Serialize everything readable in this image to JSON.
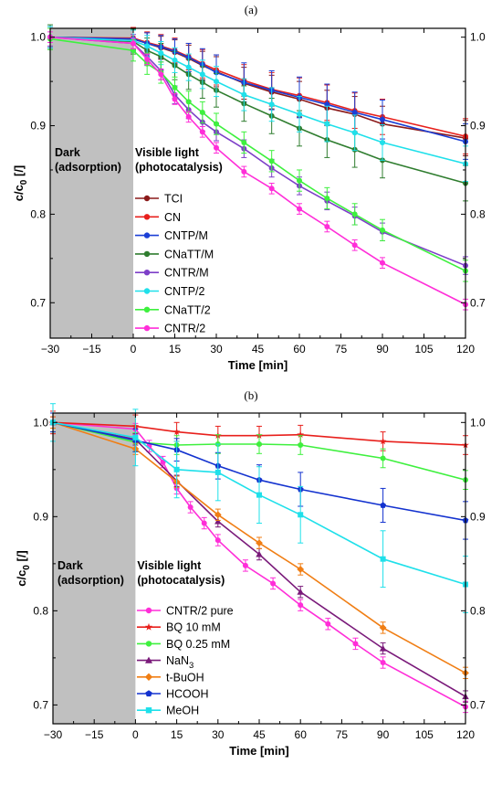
{
  "chart_data": [
    {
      "type": "line",
      "panel_label": "(a)",
      "xlabel": "Time [min]",
      "ylabel_main": "c/c",
      "ylabel_sub": "0",
      "ylabel_unit": " [/]",
      "xlim": [
        -30,
        120
      ],
      "ylim": [
        0.66,
        1.01
      ],
      "xticks": [
        -30,
        -15,
        0,
        15,
        30,
        45,
        60,
        75,
        90,
        105,
        120
      ],
      "yticks": [
        0.7,
        0.8,
        0.9,
        1.0
      ],
      "xtick_labels": [
        "−30",
        "−15",
        "0",
        "15",
        "30",
        "45",
        "60",
        "75",
        "90",
        "105",
        "120"
      ],
      "ytick_labels": [
        "0.7",
        "0.8",
        "0.9",
        "1.0"
      ],
      "dark_region": [
        -30,
        0
      ],
      "dark_label_1": "Dark",
      "dark_label_2": "(adsorption)",
      "light_label_1": "Visible light",
      "light_label_2": "(photocatalysis)",
      "legend_position": "middle-left",
      "series": [
        {
          "name": "TCI",
          "color": "#8b1a1a",
          "marker": "circle",
          "x": [
            -30,
            0,
            5,
            10,
            15,
            20,
            25,
            30,
            40,
            50,
            60,
            70,
            80,
            90,
            120
          ],
          "y": [
            1.0,
            0.998,
            0.993,
            0.988,
            0.983,
            0.976,
            0.968,
            0.961,
            0.948,
            0.938,
            0.93,
            0.92,
            0.913,
            0.902,
            0.886
          ],
          "err": [
            0.012,
            0.012,
            0.012,
            0.013,
            0.014,
            0.015,
            0.016,
            0.017,
            0.018,
            0.019,
            0.02,
            0.02,
            0.02,
            0.02,
            0.02
          ]
        },
        {
          "name": "CN",
          "color": "#e8201c",
          "marker": "circle",
          "x": [
            -30,
            0,
            5,
            10,
            15,
            20,
            25,
            30,
            40,
            50,
            60,
            70,
            80,
            90,
            120
          ],
          "y": [
            1.0,
            0.999,
            0.994,
            0.99,
            0.985,
            0.978,
            0.97,
            0.963,
            0.951,
            0.941,
            0.934,
            0.926,
            0.917,
            0.91,
            0.888
          ],
          "err": [
            0.012,
            0.012,
            0.012,
            0.013,
            0.014,
            0.015,
            0.016,
            0.017,
            0.018,
            0.019,
            0.02,
            0.02,
            0.02,
            0.02,
            0.02
          ]
        },
        {
          "name": "CNTP/M",
          "color": "#1b3fd6",
          "marker": "circle",
          "x": [
            -30,
            0,
            5,
            10,
            15,
            20,
            25,
            30,
            40,
            50,
            60,
            70,
            80,
            90,
            120
          ],
          "y": [
            1.0,
            0.998,
            0.993,
            0.989,
            0.984,
            0.977,
            0.969,
            0.96,
            0.949,
            0.94,
            0.932,
            0.924,
            0.915,
            0.907,
            0.882
          ],
          "err": [
            0.012,
            0.012,
            0.012,
            0.013,
            0.014,
            0.016,
            0.018,
            0.02,
            0.022,
            0.022,
            0.023,
            0.023,
            0.023,
            0.022,
            0.02
          ]
        },
        {
          "name": "CNaTT/M",
          "color": "#2f7d2f",
          "marker": "circle",
          "x": [
            -30,
            0,
            5,
            10,
            15,
            20,
            25,
            30,
            40,
            50,
            60,
            70,
            80,
            90,
            120
          ],
          "y": [
            1.0,
            0.995,
            0.985,
            0.978,
            0.968,
            0.958,
            0.949,
            0.94,
            0.925,
            0.911,
            0.897,
            0.884,
            0.873,
            0.861,
            0.835
          ],
          "err": [
            0.014,
            0.014,
            0.014,
            0.015,
            0.016,
            0.017,
            0.018,
            0.019,
            0.02,
            0.02,
            0.02,
            0.02,
            0.02,
            0.02,
            0.02
          ]
        },
        {
          "name": "CNTR/M",
          "color": "#7d3fc8",
          "marker": "circle",
          "x": [
            -30,
            0,
            5,
            10,
            15,
            20,
            25,
            30,
            40,
            50,
            60,
            70,
            80,
            90,
            120
          ],
          "y": [
            1.0,
            0.993,
            0.978,
            0.962,
            0.935,
            0.918,
            0.904,
            0.893,
            0.874,
            0.852,
            0.832,
            0.815,
            0.798,
            0.78,
            0.742
          ],
          "err": [
            0.01,
            0.01,
            0.01,
            0.01,
            0.01,
            0.01,
            0.01,
            0.01,
            0.01,
            0.01,
            0.01,
            0.01,
            0.01,
            0.01,
            0.01
          ]
        },
        {
          "name": "CNTP/2",
          "color": "#1fe0ea",
          "marker": "circle",
          "x": [
            -30,
            0,
            5,
            10,
            15,
            20,
            25,
            30,
            40,
            50,
            60,
            70,
            80,
            90,
            120
          ],
          "y": [
            1.0,
            0.996,
            0.99,
            0.982,
            0.974,
            0.966,
            0.958,
            0.95,
            0.935,
            0.924,
            0.913,
            0.902,
            0.892,
            0.881,
            0.857
          ],
          "err": [
            0.012,
            0.012,
            0.012,
            0.013,
            0.014,
            0.015,
            0.016,
            0.017,
            0.018,
            0.019,
            0.02,
            0.02,
            0.02,
            0.02,
            0.02
          ]
        },
        {
          "name": "CNaTT/2",
          "color": "#3ef03e",
          "marker": "circle",
          "x": [
            -30,
            0,
            5,
            10,
            15,
            20,
            25,
            30,
            40,
            50,
            60,
            70,
            80,
            90,
            120
          ],
          "y": [
            0.998,
            0.985,
            0.97,
            0.96,
            0.943,
            0.927,
            0.915,
            0.902,
            0.881,
            0.86,
            0.838,
            0.818,
            0.8,
            0.782,
            0.736
          ],
          "err": [
            0.012,
            0.012,
            0.012,
            0.012,
            0.012,
            0.012,
            0.012,
            0.012,
            0.012,
            0.012,
            0.012,
            0.012,
            0.012,
            0.012,
            0.012
          ]
        },
        {
          "name": "CNTR/2",
          "color": "#ff2ed8",
          "marker": "circle",
          "x": [
            -30,
            0,
            5,
            10,
            15,
            20,
            25,
            30,
            40,
            50,
            60,
            70,
            80,
            90,
            120
          ],
          "y": [
            1.0,
            0.993,
            0.975,
            0.958,
            0.93,
            0.91,
            0.893,
            0.875,
            0.848,
            0.829,
            0.806,
            0.786,
            0.765,
            0.745,
            0.698
          ],
          "err": [
            0.006,
            0.006,
            0.006,
            0.006,
            0.006,
            0.006,
            0.006,
            0.006,
            0.006,
            0.006,
            0.006,
            0.006,
            0.006,
            0.006,
            0.006
          ]
        }
      ]
    },
    {
      "type": "line",
      "panel_label": "(b)",
      "xlabel": "Time [min]",
      "ylabel_main": "c/c",
      "ylabel_sub": "0",
      "ylabel_unit": " [/]",
      "xlim": [
        -30,
        120
      ],
      "ylim": [
        0.68,
        1.01
      ],
      "xticks": [
        -30,
        -15,
        0,
        15,
        30,
        45,
        60,
        75,
        90,
        105,
        120
      ],
      "yticks": [
        0.7,
        0.8,
        0.9,
        1.0
      ],
      "xtick_labels": [
        "−30",
        "−15",
        "0",
        "15",
        "30",
        "45",
        "60",
        "75",
        "90",
        "105",
        "120"
      ],
      "ytick_labels": [
        "0.7",
        "0.8",
        "0.9",
        "1.0"
      ],
      "dark_region": [
        -30,
        0
      ],
      "dark_label_1": "Dark",
      "dark_label_2": "(adsorption)",
      "light_label_1": "Visible light",
      "light_label_2": "(photocatalysis)",
      "legend_position": "bottom-left",
      "series": [
        {
          "name": "CNTR/2 pure",
          "color": "#ff2ed8",
          "marker": "circle",
          "x": [
            -30,
            0,
            5,
            10,
            15,
            20,
            25,
            30,
            40,
            50,
            60,
            70,
            80,
            90,
            120
          ],
          "y": [
            1.0,
            0.993,
            0.975,
            0.958,
            0.93,
            0.91,
            0.893,
            0.875,
            0.848,
            0.829,
            0.806,
            0.786,
            0.765,
            0.745,
            0.698
          ],
          "err": [
            0.006,
            0.006,
            0.006,
            0.006,
            0.006,
            0.006,
            0.006,
            0.006,
            0.006,
            0.006,
            0.006,
            0.006,
            0.006,
            0.006,
            0.006
          ]
        },
        {
          "name": "BQ 10 mM",
          "color": "#e8201c",
          "marker": "star",
          "x": [
            -30,
            0,
            15,
            30,
            45,
            60,
            90,
            120
          ],
          "y": [
            1.0,
            0.996,
            0.99,
            0.986,
            0.986,
            0.987,
            0.98,
            0.976
          ],
          "err": [
            0.012,
            0.012,
            0.01,
            0.01,
            0.01,
            0.01,
            0.01,
            0.01
          ]
        },
        {
          "name": "BQ 0.25 mM",
          "color": "#3ef03e",
          "marker": "circle",
          "x": [
            -30,
            0,
            15,
            30,
            45,
            60,
            90,
            120
          ],
          "y": [
            1.0,
            0.979,
            0.976,
            0.977,
            0.977,
            0.976,
            0.962,
            0.939
          ],
          "err": [
            0.01,
            0.01,
            0.01,
            0.01,
            0.01,
            0.01,
            0.01,
            0.01
          ]
        },
        {
          "name": "NaN",
          "name_sub": "3",
          "color": "#7a1a7a",
          "marker": "triangle",
          "x": [
            -30,
            0,
            15,
            30,
            45,
            60,
            90,
            120
          ],
          "y": [
            1.0,
            0.982,
            0.938,
            0.895,
            0.86,
            0.82,
            0.76,
            0.709
          ],
          "err": [
            0.006,
            0.006,
            0.006,
            0.006,
            0.006,
            0.006,
            0.006,
            0.006
          ]
        },
        {
          "name": "t-BuOH",
          "color": "#f07e14",
          "marker": "diamond",
          "x": [
            -30,
            0,
            15,
            30,
            45,
            60,
            90,
            120
          ],
          "y": [
            1.0,
            0.972,
            0.937,
            0.902,
            0.872,
            0.844,
            0.782,
            0.734
          ],
          "err": [
            0.006,
            0.006,
            0.006,
            0.006,
            0.006,
            0.006,
            0.006,
            0.006
          ]
        },
        {
          "name": "HCOOH",
          "color": "#1332cf",
          "marker": "pentagon",
          "x": [
            -30,
            0,
            15,
            30,
            45,
            60,
            90,
            120
          ],
          "y": [
            1.0,
            0.981,
            0.971,
            0.954,
            0.939,
            0.929,
            0.912,
            0.896
          ],
          "err": [
            0.01,
            0.012,
            0.012,
            0.014,
            0.016,
            0.018,
            0.018,
            0.02
          ]
        },
        {
          "name": "MeOH",
          "color": "#1fe0ea",
          "marker": "square",
          "x": [
            -30,
            0,
            15,
            30,
            45,
            60,
            90,
            120
          ],
          "y": [
            1.0,
            0.984,
            0.95,
            0.947,
            0.923,
            0.902,
            0.855,
            0.828
          ],
          "err": [
            0.02,
            0.03,
            0.03,
            0.03,
            0.03,
            0.03,
            0.03,
            0.03
          ]
        }
      ]
    }
  ]
}
